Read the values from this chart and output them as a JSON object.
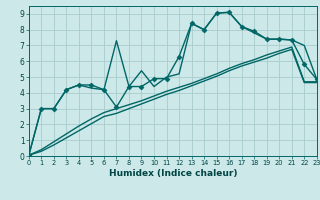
{
  "xlabel": "Humidex (Indice chaleur)",
  "bg_color": "#cce8e8",
  "grid_color": "#aacccc",
  "line_color": "#006666",
  "xlim": [
    0,
    23
  ],
  "ylim": [
    0,
    9.5
  ],
  "xticks": [
    0,
    1,
    2,
    3,
    4,
    5,
    6,
    7,
    8,
    9,
    10,
    11,
    12,
    13,
    14,
    15,
    16,
    17,
    18,
    19,
    20,
    21,
    22,
    23
  ],
  "yticks": [
    0,
    1,
    2,
    3,
    4,
    5,
    6,
    7,
    8,
    9
  ],
  "series": [
    {
      "x": [
        0,
        1,
        2,
        3,
        4,
        5,
        6,
        7,
        8,
        9,
        10,
        11,
        12,
        13,
        14,
        15,
        16,
        17,
        18,
        19,
        20,
        21,
        22,
        23
      ],
      "y": [
        0.05,
        3.0,
        3.0,
        4.2,
        4.5,
        4.5,
        4.2,
        3.1,
        4.4,
        4.4,
        4.9,
        4.9,
        6.3,
        8.4,
        8.0,
        9.05,
        9.1,
        8.2,
        7.9,
        7.4,
        7.4,
        7.35,
        5.8,
        4.85
      ],
      "marker": "D",
      "markersize": 2.5,
      "linewidth": 1.0,
      "zorder": 4
    },
    {
      "x": [
        0,
        1,
        2,
        3,
        4,
        5,
        6,
        7,
        8,
        9,
        10,
        11,
        12,
        13,
        14,
        15,
        16,
        17,
        18,
        19,
        20,
        21,
        22,
        23
      ],
      "y": [
        0.05,
        3.0,
        3.0,
        4.2,
        4.5,
        4.3,
        4.2,
        7.3,
        4.4,
        5.4,
        4.4,
        5.0,
        5.2,
        8.4,
        8.0,
        9.05,
        9.1,
        8.2,
        7.8,
        7.4,
        7.4,
        7.35,
        7.0,
        4.85
      ],
      "marker": null,
      "markersize": 0,
      "linewidth": 1.0,
      "zorder": 3
    },
    {
      "x": [
        0,
        1,
        2,
        3,
        4,
        5,
        6,
        7,
        8,
        9,
        10,
        11,
        12,
        13,
        14,
        15,
        16,
        17,
        18,
        19,
        20,
        21,
        22,
        23
      ],
      "y": [
        0.05,
        0.4,
        0.9,
        1.4,
        1.9,
        2.35,
        2.75,
        3.0,
        3.25,
        3.5,
        3.8,
        4.1,
        4.35,
        4.6,
        4.9,
        5.2,
        5.55,
        5.85,
        6.1,
        6.4,
        6.65,
        6.9,
        4.7,
        4.7
      ],
      "marker": null,
      "markersize": 0,
      "linewidth": 1.0,
      "zorder": 2
    },
    {
      "x": [
        0,
        1,
        2,
        3,
        4,
        5,
        6,
        7,
        8,
        9,
        10,
        11,
        12,
        13,
        14,
        15,
        16,
        17,
        18,
        19,
        20,
        21,
        22,
        23
      ],
      "y": [
        0.05,
        0.3,
        0.7,
        1.15,
        1.6,
        2.05,
        2.5,
        2.7,
        3.0,
        3.3,
        3.6,
        3.9,
        4.15,
        4.45,
        4.75,
        5.05,
        5.4,
        5.7,
        5.95,
        6.2,
        6.5,
        6.75,
        4.65,
        4.65
      ],
      "marker": null,
      "markersize": 0,
      "linewidth": 1.0,
      "zorder": 2
    }
  ]
}
